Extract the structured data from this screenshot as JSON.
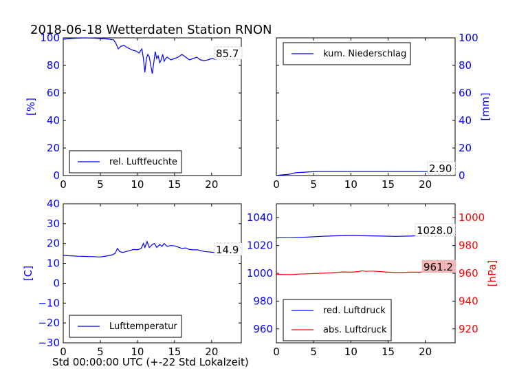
{
  "figure": {
    "title": "2018-06-18 Wetterdaten Station RNON",
    "xlabel": "Std 00:00:00 UTC (+-22 Std Lokalzeit)"
  },
  "chart_data": [
    {
      "id": "humidity",
      "type": "line",
      "ylabel": "[%]",
      "ylabel_color": "#0000ff",
      "xlim": [
        0,
        24
      ],
      "ylim": [
        0,
        100
      ],
      "xticks": [
        "0",
        "5",
        "10",
        "15",
        "20"
      ],
      "yticks": [
        "0",
        "20",
        "40",
        "60",
        "80",
        "100"
      ],
      "legend": "lower-left",
      "series": [
        {
          "name": "rel. Luftfeuchte",
          "color": "#0000ff",
          "x": [
            0,
            1,
            2,
            3,
            4,
            5,
            6,
            6.8,
            7.1,
            7.4,
            7.8,
            8.2,
            8.6,
            9,
            9.4,
            9.8,
            10.2,
            10.6,
            10.8,
            11,
            11.2,
            11.4,
            11.6,
            11.8,
            12,
            12.2,
            12.4,
            12.6,
            12.8,
            13,
            13.2,
            13.4,
            13.6,
            13.8,
            14,
            14.5,
            15,
            15.5,
            16,
            16.5,
            17,
            17.5,
            18,
            18.5,
            19,
            19.5,
            20,
            20.5,
            21,
            21.5,
            22,
            22.5,
            23,
            23.5,
            24
          ],
          "y": [
            99,
            99.5,
            99.8,
            100,
            99.8,
            99.5,
            99.2,
            98.5,
            96,
            92,
            94,
            94.5,
            93,
            92,
            91,
            90.5,
            89,
            92,
            85,
            75,
            85,
            88,
            86,
            80,
            74,
            82,
            90,
            85,
            87,
            82,
            84,
            88,
            83,
            85,
            86,
            84,
            85,
            86,
            88,
            86,
            84,
            85,
            86,
            84,
            83.5,
            84,
            85,
            84.5,
            85,
            86,
            86.5,
            85.5,
            86,
            85.5,
            86
          ]
        }
      ],
      "annotation": "85.7"
    },
    {
      "id": "precipitation",
      "type": "line",
      "ylabel": "[mm]",
      "ylabel_color": "#0000ff",
      "xlim": [
        0,
        24
      ],
      "ylim": [
        0,
        100
      ],
      "xticks": [
        "0",
        "5",
        "10",
        "15",
        "20"
      ],
      "yticks": [
        "0",
        "20",
        "40",
        "60",
        "80",
        "100"
      ],
      "legend": "upper-left",
      "series": [
        {
          "name": "kum. Niederschlag",
          "color": "#0000ff",
          "x": [
            0,
            0.5,
            1,
            1.5,
            2,
            2.5,
            3,
            4,
            5,
            5.5,
            10,
            15,
            20,
            24
          ],
          "y": [
            0,
            0.4,
            0.6,
            0.8,
            1.2,
            2.0,
            2.2,
            2.5,
            2.8,
            2.9,
            2.9,
            2.9,
            2.9,
            2.9
          ]
        }
      ],
      "annotation": "2.90"
    },
    {
      "id": "temperature",
      "type": "line",
      "ylabel": "[C]",
      "ylabel_color": "#0000ff",
      "xlim": [
        0,
        24
      ],
      "ylim": [
        -30,
        40
      ],
      "xticks": [
        "0",
        "5",
        "10",
        "15",
        "20"
      ],
      "yticks": [
        "−30",
        "−20",
        "−10",
        "0",
        "10",
        "20",
        "30",
        "40"
      ],
      "legend": "lower-left",
      "series": [
        {
          "name": "Lufttemperatur",
          "color": "#0000ff",
          "x": [
            0,
            1,
            2,
            3,
            4,
            5,
            6,
            6.5,
            7,
            7.3,
            7.6,
            8,
            8.5,
            9,
            9.5,
            10,
            10.5,
            10.8,
            11,
            11.3,
            11.6,
            12,
            12.3,
            12.6,
            13,
            13.3,
            13.6,
            14,
            14.5,
            15,
            15.5,
            16,
            16.5,
            17,
            17.5,
            18,
            18.5,
            19,
            19.5,
            20,
            21,
            22,
            23,
            24
          ],
          "y": [
            14,
            13.8,
            13.6,
            13.5,
            13.4,
            13.2,
            13.8,
            14.2,
            15,
            17.5,
            16,
            15.5,
            16,
            16.5,
            17,
            16.8,
            17.5,
            20,
            18,
            21,
            18,
            19.5,
            20,
            18,
            19.5,
            18.5,
            20,
            18.5,
            19,
            18.8,
            18.2,
            17.5,
            17.8,
            17,
            16.8,
            16.8,
            16.5,
            16,
            15.8,
            15.6,
            15.4,
            15.2,
            15,
            14.9
          ]
        }
      ],
      "annotation": "14.9"
    },
    {
      "id": "pressure",
      "type": "line",
      "ylabel_right": "[hPa]",
      "ylabel_right_color": "#ff0000",
      "left_tick_color": "#0000ff",
      "right_tick_color": "#ff0000",
      "xlim": [
        0,
        24
      ],
      "ylim_left": [
        950,
        1050
      ],
      "ylim_right": [
        910,
        1010
      ],
      "xticks": [
        "0",
        "5",
        "10",
        "15",
        "20"
      ],
      "yticks_left": [
        "960",
        "980",
        "1000",
        "1020",
        "1040"
      ],
      "yticks_right": [
        "920",
        "940",
        "960",
        "980",
        "1000"
      ],
      "legend": "lower-left",
      "series": [
        {
          "name": "red. Luftdruck",
          "color": "#0000ff",
          "axis": "left",
          "x": [
            0,
            2,
            4,
            6,
            8,
            10,
            12,
            14,
            16,
            18,
            20,
            22,
            24
          ],
          "y": [
            1025.5,
            1025.6,
            1026,
            1026.6,
            1027,
            1027.2,
            1027,
            1026.8,
            1026.6,
            1026.8,
            1027.3,
            1027.8,
            1028
          ]
        },
        {
          "name": "abs. Luftdruck",
          "color": "#ff0000",
          "axis": "right",
          "x": [
            0,
            2,
            3,
            4,
            6,
            8,
            9,
            10,
            11,
            11.5,
            12,
            13,
            14,
            15,
            16,
            17,
            18,
            19,
            20,
            21,
            22,
            23,
            24
          ],
          "y": [
            959.2,
            959.0,
            959.4,
            959.6,
            960.0,
            960.6,
            961.0,
            960.8,
            961.2,
            961.8,
            961.4,
            961.6,
            961.2,
            960.8,
            960.6,
            960.6,
            960.8,
            960.8,
            960.9,
            961.0,
            961.0,
            961.1,
            961.2
          ]
        }
      ],
      "annotation_left": "1028.0",
      "annotation_right": "961.2"
    }
  ]
}
